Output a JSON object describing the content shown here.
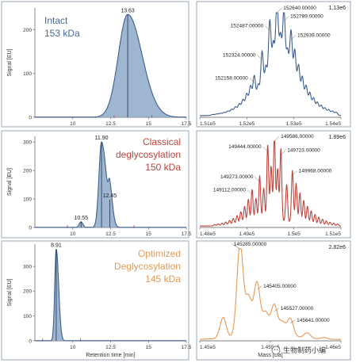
{
  "colors": {
    "blue": "#3c5f8f",
    "blue_fill": "#8ea9c8",
    "red": "#c0443c",
    "red_fill": "#b8c5d6",
    "orange": "#e59a57",
    "orange_fill": "#a9bdd3",
    "frame": "#9aa7b5"
  },
  "panels_left": [
    {
      "title_lines": [
        "Intact",
        "153 kDa"
      ],
      "title_color": "#4a6a9a",
      "title_align": "left",
      "ylabel": "Signal [EU]",
      "xlabel": "",
      "color": "#3c5f8f",
      "fill": "#8ea9c8"
    },
    {
      "title_lines": [
        "Classical",
        "deglycosylation",
        "150 kDa"
      ],
      "title_color": "#c0443c",
      "title_align": "right",
      "ylabel": "Signal [EU]",
      "xlabel": "",
      "color": "#3c5f8f",
      "fill": "#8ea9c8"
    },
    {
      "title_lines": [
        "Optimized",
        "Deglycosylation",
        "145 kDa"
      ],
      "title_color": "#e59a57",
      "title_align": "right",
      "ylabel": "Signal [EU]",
      "xlabel": "Retention time [min]",
      "color": "#3c5f8f",
      "fill": "#8ea9c8"
    }
  ],
  "panels_right": [
    {
      "max_label": "1.13e6",
      "xlabel": "",
      "color": "#3c5f8f"
    },
    {
      "max_label": "1.89e6",
      "xlabel": "",
      "color": "#c0443c"
    },
    {
      "max_label": "2.82e6",
      "xlabel": "Mass [Da]",
      "color": "#e59a57"
    }
  ],
  "watermark": "生物制药小编",
  "chart_data": [
    {
      "type": "area",
      "title": "Intact 153 kDa",
      "xlabel": "",
      "ylabel": "Signal [EU]",
      "xlim": [
        7.5,
        17.5
      ],
      "ylim": [
        0,
        250
      ],
      "x_ticks": [
        "10",
        "12.5",
        "15",
        "17.5"
      ],
      "y_ticks": [
        "0",
        "100",
        "200"
      ],
      "peaks": [
        {
          "rt": 13.63,
          "height": 235,
          "label": "13.63"
        }
      ]
    },
    {
      "type": "area",
      "title": "Classical deglycosylation 150 kDa",
      "xlabel": "",
      "ylabel": "Signal [EU]",
      "xlim": [
        7.5,
        17.5
      ],
      "ylim": [
        0,
        320
      ],
      "x_ticks": [
        "10",
        "12.5",
        "15",
        "17.5"
      ],
      "y_ticks": [
        "0",
        "100",
        "200",
        "300"
      ],
      "peaks": [
        {
          "rt": 10.55,
          "height": 20,
          "label": "10.55"
        },
        {
          "rt": 11.9,
          "height": 300,
          "label": "11.90"
        },
        {
          "rt": 12.45,
          "height": 98,
          "label": "12.45"
        }
      ]
    },
    {
      "type": "area",
      "title": "Optimized Deglycosylation 145 kDa",
      "xlabel": "Retention time [min]",
      "ylabel": "Signal [EU]",
      "xlim": [
        7.5,
        17.5
      ],
      "ylim": [
        0,
        390
      ],
      "x_ticks": [
        "10",
        "12.5",
        "15",
        "17.5"
      ],
      "y_ticks": [
        "0",
        "100",
        "200",
        "300"
      ],
      "peaks": [
        {
          "rt": 8.91,
          "height": 370,
          "label": "8.91"
        }
      ]
    },
    {
      "type": "line",
      "title": "",
      "xlabel": "",
      "ylabel": "",
      "y_max_label": "1.13e6",
      "xlim": [
        151000,
        154000
      ],
      "x_ticks": [
        "1.51e5",
        "1.52e5",
        "1.53e5",
        "1.54e5"
      ],
      "labeled_peaks": [
        {
          "mass": 152158,
          "rel": 0.33,
          "label": "152158.00000"
        },
        {
          "mass": 152324,
          "rel": 0.55,
          "label": "152324.00000"
        },
        {
          "mass": 152487,
          "rel": 0.83,
          "label": "152487.00000"
        },
        {
          "mass": 152640,
          "rel": 1.0,
          "label": "152640.00000"
        },
        {
          "mass": 152789,
          "rel": 0.92,
          "label": "152789.00000"
        },
        {
          "mass": 152939,
          "rel": 0.74,
          "label": "152939.00000"
        }
      ]
    },
    {
      "type": "line",
      "title": "",
      "xlabel": "",
      "ylabel": "",
      "y_max_label": "1.89e6",
      "xlim": [
        148000,
        151000
      ],
      "x_ticks": [
        "1.48e5",
        "1.49e5",
        "1.5e5",
        "1.51e5"
      ],
      "labeled_peaks": [
        {
          "mass": 149112,
          "rel": 0.38,
          "label": "149112.00000"
        },
        {
          "mass": 149273,
          "rel": 0.53,
          "label": "149273.00000"
        },
        {
          "mass": 149444,
          "rel": 0.88,
          "label": "149444.00000"
        },
        {
          "mass": 149586,
          "rel": 1.0,
          "label": "149586.00000"
        },
        {
          "mass": 149723,
          "rel": 0.84,
          "label": "149723.00000"
        },
        {
          "mass": 149968,
          "rel": 0.6,
          "label": "149968.00000"
        }
      ]
    },
    {
      "type": "line",
      "title": "",
      "xlabel": "Mass [Da]",
      "ylabel": "",
      "y_max_label": "2.82e6",
      "xlim": [
        145000,
        146000
      ],
      "x_ticks": [
        "1.45e5",
        "1.455e5",
        "1.46e5"
      ],
      "labeled_peaks": [
        {
          "mass": 145285,
          "rel": 1.0,
          "label": "145285.00000"
        },
        {
          "mass": 145405,
          "rel": 0.56,
          "label": "145405.00000"
        },
        {
          "mass": 145527,
          "rel": 0.32,
          "label": "145527.00000"
        },
        {
          "mass": 145641,
          "rel": 0.19,
          "label": "145641.00000"
        }
      ]
    }
  ]
}
